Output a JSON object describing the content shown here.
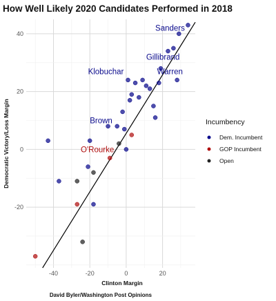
{
  "chart_data": {
    "type": "scatter",
    "title": "How Well Likely 2020 Candidates Performed in 2018",
    "xlabel": "Clinton Margin",
    "ylabel": "Democratic Victory/Loss Margin",
    "credit": "David Byler/Washington Post Opinions",
    "xlim": [
      -55,
      38
    ],
    "ylim": [
      -41,
      45
    ],
    "xticks": [
      -40,
      -20,
      0,
      20
    ],
    "yticks": [
      -20,
      0,
      20,
      40
    ],
    "grid": true,
    "legend": {
      "title": "Incumbency",
      "placement": "right",
      "entries": [
        {
          "label": "Dem. Incumbent",
          "color": "#0a0a8c"
        },
        {
          "label": "GOP Incumbent",
          "color": "#b01010"
        },
        {
          "label": "Open",
          "color": "#222222"
        }
      ]
    },
    "series": [
      {
        "name": "Dem. Incumbent",
        "color": "#0a0a8c",
        "points": [
          [
            -43,
            3
          ],
          [
            -37,
            -11
          ],
          [
            -21,
            -6
          ],
          [
            -20,
            3
          ],
          [
            -18,
            -19
          ],
          [
            -10,
            8
          ],
          [
            -5,
            8
          ],
          [
            -2,
            13
          ],
          [
            -1,
            7
          ],
          [
            0,
            0
          ],
          [
            1,
            24
          ],
          [
            2,
            17
          ],
          [
            3,
            19
          ],
          [
            5,
            23
          ],
          [
            7,
            18
          ],
          [
            9,
            24
          ],
          [
            11,
            22
          ],
          [
            13,
            21
          ],
          [
            15,
            15
          ],
          [
            16,
            11
          ],
          [
            18,
            23
          ],
          [
            19,
            28
          ],
          [
            23,
            34
          ],
          [
            26,
            35
          ],
          [
            28,
            24
          ],
          [
            29,
            40
          ],
          [
            34,
            43
          ]
        ]
      },
      {
        "name": "GOP Incumbent",
        "color": "#b01010",
        "points": [
          [
            -50,
            -37
          ],
          [
            -27,
            -19
          ],
          [
            -9,
            -3
          ],
          [
            3,
            5
          ]
        ]
      },
      {
        "name": "Open",
        "color": "#222222",
        "points": [
          [
            -27,
            -11
          ],
          [
            -24,
            -32
          ],
          [
            -18,
            -8
          ],
          [
            -4,
            2
          ]
        ]
      }
    ],
    "trend_line": {
      "x": [
        -46,
        38
      ],
      "y": [
        -41,
        44
      ]
    },
    "annotations": [
      {
        "text": "Sanders",
        "x": 16,
        "y": 41,
        "color": "#0a0a8c"
      },
      {
        "text": "Gillibrand",
        "x": 11,
        "y": 31,
        "color": "#0a0a8c"
      },
      {
        "text": "Klobuchar",
        "x": -21,
        "y": 26,
        "color": "#0a0a8c"
      },
      {
        "text": "Warren",
        "x": 17,
        "y": 26,
        "color": "#0a0a8c"
      },
      {
        "text": "Brown",
        "x": -20,
        "y": 9,
        "color": "#0a0a8c"
      },
      {
        "text": "O'Rourke",
        "x": -25,
        "y": -1,
        "color": "#b01010"
      }
    ]
  }
}
